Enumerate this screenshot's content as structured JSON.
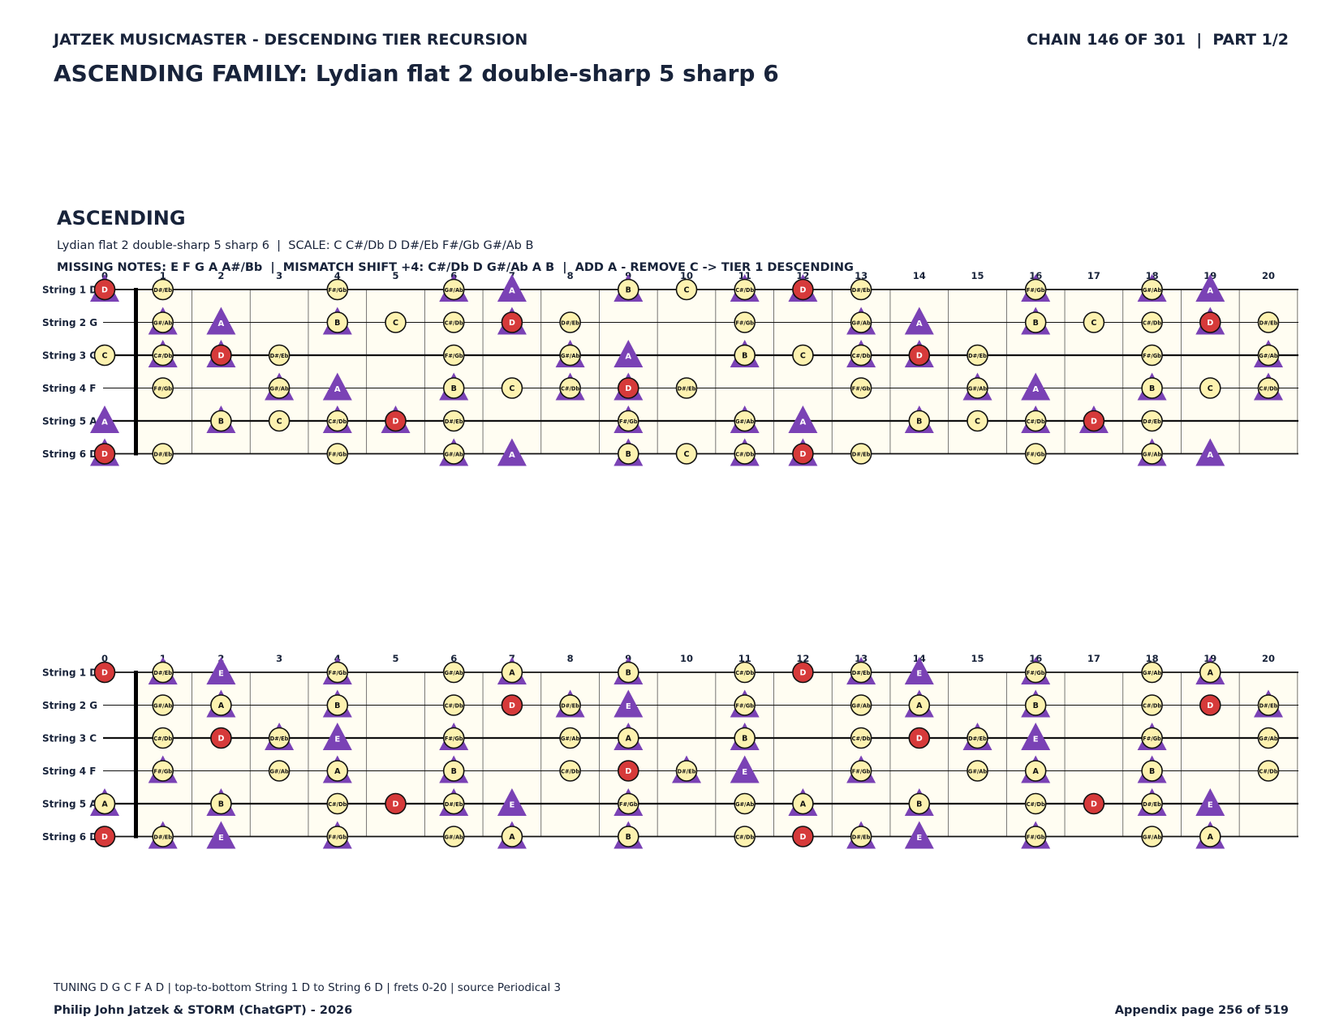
{
  "header": {
    "left": "JATZEK MUSICMASTER - DESCENDING TIER RECURSION",
    "right": "CHAIN 146 OF 301  |  PART 1/2"
  },
  "title": "ASCENDING FAMILY: Lydian flat 2 double-sharp 5 sharp 6",
  "section": {
    "heading": "ASCENDING",
    "subtitle": "Lydian flat 2 double-sharp 5 sharp 6  |  SCALE: C C#/Db D D#/Eb F#/Gb G#/Ab B",
    "missing": "MISSING NOTES: E F G A A#/Bb  |  MISMATCH SHIFT +4: C#/Db D G#/Ab A B  |  ADD A - REMOVE C -> TIER 1 DESCENDING"
  },
  "string_labels": [
    "String 1 D",
    "String 2 G",
    "String 3 C",
    "String 4 F",
    "String 5 A",
    "String 6 D"
  ],
  "fret_numbers": [
    "0",
    "1",
    "2",
    "3",
    "4",
    "5",
    "6",
    "7",
    "8",
    "9",
    "10",
    "11",
    "12",
    "13",
    "14",
    "15",
    "16",
    "17",
    "18",
    "19",
    "20"
  ],
  "colors": {
    "circle_fill": "#fdf2b0",
    "root_fill": "#d63a3a",
    "triangle_fill": "#7a42b5",
    "board_bg": "#fffdf2",
    "ink": "#18233a"
  },
  "boards": [
    {
      "strings": [
        {
          "circles": [
            [
              0,
              "D",
              "r"
            ],
            [
              1,
              "D#/Eb"
            ],
            [
              4,
              "F#/Gb"
            ],
            [
              6,
              "G#/Ab"
            ],
            [
              9,
              "B"
            ],
            [
              10,
              "C"
            ],
            [
              11,
              "C#/Db"
            ],
            [
              12,
              "D",
              "r"
            ],
            [
              13,
              "D#/Eb"
            ],
            [
              16,
              "F#/Gb"
            ],
            [
              18,
              "G#/Ab"
            ]
          ],
          "triangles": [
            [
              0,
              ""
            ],
            [
              6,
              ""
            ],
            [
              7,
              "A"
            ],
            [
              9,
              ""
            ],
            [
              11,
              ""
            ],
            [
              12,
              ""
            ],
            [
              16,
              ""
            ],
            [
              18,
              ""
            ],
            [
              19,
              "A"
            ]
          ]
        },
        {
          "circles": [
            [
              1,
              "G#/Ab"
            ],
            [
              4,
              "B"
            ],
            [
              5,
              "C"
            ],
            [
              6,
              "C#/Db"
            ],
            [
              7,
              "D",
              "r"
            ],
            [
              8,
              "D#/Eb"
            ],
            [
              11,
              "F#/Gb"
            ],
            [
              13,
              "G#/Ab"
            ],
            [
              16,
              "B"
            ],
            [
              17,
              "C"
            ],
            [
              18,
              "C#/Db"
            ],
            [
              19,
              "D",
              "r"
            ],
            [
              20,
              "D#/Eb"
            ]
          ],
          "triangles": [
            [
              1,
              ""
            ],
            [
              2,
              "A"
            ],
            [
              4,
              ""
            ],
            [
              7,
              ""
            ],
            [
              13,
              ""
            ],
            [
              14,
              "A"
            ],
            [
              16,
              ""
            ],
            [
              19,
              ""
            ]
          ]
        },
        {
          "circles": [
            [
              0,
              "C"
            ],
            [
              1,
              "C#/Db"
            ],
            [
              2,
              "D",
              "r"
            ],
            [
              3,
              "D#/Eb"
            ],
            [
              6,
              "F#/Gb"
            ],
            [
              8,
              "G#/Ab"
            ],
            [
              11,
              "B"
            ],
            [
              12,
              "C"
            ],
            [
              13,
              "C#/Db"
            ],
            [
              14,
              "D",
              "r"
            ],
            [
              15,
              "D#/Eb"
            ],
            [
              18,
              "F#/Gb"
            ],
            [
              20,
              "G#/Ab"
            ]
          ],
          "triangles": [
            [
              1,
              ""
            ],
            [
              2,
              ""
            ],
            [
              8,
              ""
            ],
            [
              9,
              "A"
            ],
            [
              11,
              ""
            ],
            [
              13,
              ""
            ],
            [
              14,
              ""
            ],
            [
              20,
              ""
            ]
          ]
        },
        {
          "circles": [
            [
              1,
              "F#/Gb"
            ],
            [
              3,
              "G#/Ab"
            ],
            [
              6,
              "B"
            ],
            [
              7,
              "C"
            ],
            [
              8,
              "C#/Db"
            ],
            [
              9,
              "D",
              "r"
            ],
            [
              10,
              "D#/Eb"
            ],
            [
              13,
              "F#/Gb"
            ],
            [
              15,
              "G#/Ab"
            ],
            [
              18,
              "B"
            ],
            [
              19,
              "C"
            ],
            [
              20,
              "C#/Db"
            ]
          ],
          "triangles": [
            [
              3,
              ""
            ],
            [
              4,
              "A"
            ],
            [
              6,
              ""
            ],
            [
              8,
              ""
            ],
            [
              9,
              ""
            ],
            [
              15,
              ""
            ],
            [
              16,
              "A"
            ],
            [
              18,
              ""
            ],
            [
              20,
              ""
            ]
          ]
        },
        {
          "circles": [
            [
              2,
              "B"
            ],
            [
              3,
              "C"
            ],
            [
              4,
              "C#/Db"
            ],
            [
              5,
              "D",
              "r"
            ],
            [
              6,
              "D#/Eb"
            ],
            [
              9,
              "F#/Gb"
            ],
            [
              11,
              "G#/Ab"
            ],
            [
              14,
              "B"
            ],
            [
              15,
              "C"
            ],
            [
              16,
              "C#/Db"
            ],
            [
              17,
              "D",
              "r"
            ],
            [
              18,
              "D#/Eb"
            ]
          ],
          "triangles": [
            [
              0,
              "A"
            ],
            [
              2,
              ""
            ],
            [
              4,
              ""
            ],
            [
              5,
              ""
            ],
            [
              9,
              ""
            ],
            [
              11,
              ""
            ],
            [
              12,
              "A"
            ],
            [
              14,
              ""
            ],
            [
              16,
              ""
            ],
            [
              17,
              ""
            ]
          ]
        },
        {
          "circles": [
            [
              0,
              "D",
              "r"
            ],
            [
              1,
              "D#/Eb"
            ],
            [
              4,
              "F#/Gb"
            ],
            [
              6,
              "G#/Ab"
            ],
            [
              9,
              "B"
            ],
            [
              10,
              "C"
            ],
            [
              11,
              "C#/Db"
            ],
            [
              12,
              "D",
              "r"
            ],
            [
              13,
              "D#/Eb"
            ],
            [
              16,
              "F#/Gb"
            ],
            [
              18,
              "G#/Ab"
            ]
          ],
          "triangles": [
            [
              0,
              ""
            ],
            [
              6,
              ""
            ],
            [
              7,
              "A"
            ],
            [
              9,
              ""
            ],
            [
              11,
              ""
            ],
            [
              12,
              ""
            ],
            [
              18,
              ""
            ],
            [
              19,
              "A"
            ]
          ]
        }
      ]
    },
    {
      "strings": [
        {
          "circles": [
            [
              0,
              "D",
              "r"
            ],
            [
              1,
              "D#/Eb"
            ],
            [
              4,
              "F#/Gb"
            ],
            [
              6,
              "G#/Ab"
            ],
            [
              7,
              "A"
            ],
            [
              9,
              "B"
            ],
            [
              11,
              "C#/Db"
            ],
            [
              12,
              "D",
              "r"
            ],
            [
              13,
              "D#/Eb"
            ],
            [
              16,
              "F#/Gb"
            ],
            [
              18,
              "G#/Ab"
            ],
            [
              19,
              "A"
            ]
          ],
          "triangles": [
            [
              1,
              ""
            ],
            [
              2,
              "E"
            ],
            [
              4,
              ""
            ],
            [
              7,
              ""
            ],
            [
              9,
              ""
            ],
            [
              13,
              ""
            ],
            [
              14,
              "E"
            ],
            [
              16,
              ""
            ],
            [
              19,
              ""
            ]
          ]
        },
        {
          "circles": [
            [
              1,
              "G#/Ab"
            ],
            [
              2,
              "A"
            ],
            [
              4,
              "B"
            ],
            [
              6,
              "C#/Db"
            ],
            [
              7,
              "D",
              "r"
            ],
            [
              8,
              "D#/Eb"
            ],
            [
              11,
              "F#/Gb"
            ],
            [
              13,
              "G#/Ab"
            ],
            [
              14,
              "A"
            ],
            [
              16,
              "B"
            ],
            [
              18,
              "C#/Db"
            ],
            [
              19,
              "D",
              "r"
            ],
            [
              20,
              "D#/Eb"
            ]
          ],
          "triangles": [
            [
              2,
              ""
            ],
            [
              4,
              ""
            ],
            [
              8,
              ""
            ],
            [
              9,
              "E"
            ],
            [
              11,
              ""
            ],
            [
              14,
              ""
            ],
            [
              16,
              ""
            ],
            [
              20,
              ""
            ]
          ]
        },
        {
          "circles": [
            [
              1,
              "C#/Db"
            ],
            [
              2,
              "D",
              "r"
            ],
            [
              3,
              "D#/Eb"
            ],
            [
              6,
              "F#/Gb"
            ],
            [
              8,
              "G#/Ab"
            ],
            [
              9,
              "A"
            ],
            [
              11,
              "B"
            ],
            [
              13,
              "C#/Db"
            ],
            [
              14,
              "D",
              "r"
            ],
            [
              15,
              "D#/Eb"
            ],
            [
              18,
              "F#/Gb"
            ],
            [
              20,
              "G#/Ab"
            ]
          ],
          "triangles": [
            [
              3,
              ""
            ],
            [
              4,
              "E"
            ],
            [
              6,
              ""
            ],
            [
              9,
              ""
            ],
            [
              11,
              ""
            ],
            [
              15,
              ""
            ],
            [
              16,
              "E"
            ],
            [
              18,
              ""
            ]
          ]
        },
        {
          "circles": [
            [
              1,
              "F#/Gb"
            ],
            [
              3,
              "G#/Ab"
            ],
            [
              4,
              "A"
            ],
            [
              6,
              "B"
            ],
            [
              8,
              "C#/Db"
            ],
            [
              9,
              "D",
              "r"
            ],
            [
              10,
              "D#/Eb"
            ],
            [
              13,
              "F#/Gb"
            ],
            [
              15,
              "G#/Ab"
            ],
            [
              16,
              "A"
            ],
            [
              18,
              "B"
            ],
            [
              20,
              "C#/Db"
            ]
          ],
          "triangles": [
            [
              1,
              ""
            ],
            [
              4,
              ""
            ],
            [
              6,
              ""
            ],
            [
              10,
              ""
            ],
            [
              11,
              "E"
            ],
            [
              13,
              ""
            ],
            [
              16,
              ""
            ],
            [
              18,
              ""
            ]
          ]
        },
        {
          "circles": [
            [
              0,
              "A"
            ],
            [
              2,
              "B"
            ],
            [
              4,
              "C#/Db"
            ],
            [
              5,
              "D",
              "r"
            ],
            [
              6,
              "D#/Eb"
            ],
            [
              9,
              "F#/Gb"
            ],
            [
              11,
              "G#/Ab"
            ],
            [
              12,
              "A"
            ],
            [
              14,
              "B"
            ],
            [
              16,
              "C#/Db"
            ],
            [
              17,
              "D",
              "r"
            ],
            [
              18,
              "D#/Eb"
            ]
          ],
          "triangles": [
            [
              0,
              ""
            ],
            [
              2,
              ""
            ],
            [
              6,
              ""
            ],
            [
              7,
              "E"
            ],
            [
              9,
              ""
            ],
            [
              12,
              ""
            ],
            [
              14,
              ""
            ],
            [
              18,
              ""
            ],
            [
              19,
              "E"
            ]
          ]
        },
        {
          "circles": [
            [
              0,
              "D",
              "r"
            ],
            [
              1,
              "D#/Eb"
            ],
            [
              4,
              "F#/Gb"
            ],
            [
              6,
              "G#/Ab"
            ],
            [
              7,
              "A"
            ],
            [
              9,
              "B"
            ],
            [
              11,
              "C#/Db"
            ],
            [
              12,
              "D",
              "r"
            ],
            [
              13,
              "D#/Eb"
            ],
            [
              16,
              "F#/Gb"
            ],
            [
              18,
              "G#/Ab"
            ],
            [
              19,
              "A"
            ]
          ],
          "triangles": [
            [
              1,
              ""
            ],
            [
              2,
              "E"
            ],
            [
              4,
              ""
            ],
            [
              7,
              ""
            ],
            [
              9,
              ""
            ],
            [
              13,
              ""
            ],
            [
              14,
              "E"
            ],
            [
              16,
              ""
            ],
            [
              19,
              ""
            ]
          ]
        }
      ]
    }
  ],
  "footer": {
    "note": "TUNING D G C F A D | top-to-bottom String 1 D to String 6 D | frets 0-20 | source Periodical 3",
    "left": "Philip John Jatzek & STORM (ChatGPT) - 2026",
    "right": "Appendix page 256 of 519"
  }
}
